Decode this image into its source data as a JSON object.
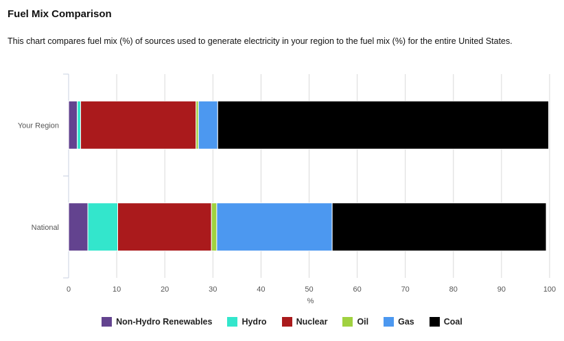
{
  "page": {
    "title": "Fuel Mix Comparison",
    "description": "This chart compares fuel mix (%) of sources used to generate electricity in your region to the fuel mix (%) for the entire United States."
  },
  "chart_data": {
    "type": "bar",
    "orientation": "horizontal",
    "stacked": true,
    "categories": [
      "Your Region",
      "National"
    ],
    "series": [
      {
        "name": "Non-Hydro Renewables",
        "color": "#63438f",
        "values": [
          1.8,
          4.0
        ]
      },
      {
        "name": "Hydro",
        "color": "#33e6cc",
        "values": [
          0.7,
          6.2
        ]
      },
      {
        "name": "Nuclear",
        "color": "#aa1a1c",
        "values": [
          24.0,
          19.5
        ]
      },
      {
        "name": "Oil",
        "color": "#a0d140",
        "values": [
          0.5,
          1.1
        ]
      },
      {
        "name": "Gas",
        "color": "#4c98f0",
        "values": [
          4.0,
          24.0
        ]
      },
      {
        "name": "Coal",
        "color": "#000000",
        "values": [
          68.8,
          44.5
        ]
      }
    ],
    "xlabel": "%",
    "ylabel": "",
    "xlim": [
      0,
      100
    ],
    "xticks": [
      0,
      10,
      20,
      30,
      40,
      50,
      60,
      70,
      80,
      90,
      100
    ],
    "grid": true,
    "legend_position": "bottom"
  }
}
